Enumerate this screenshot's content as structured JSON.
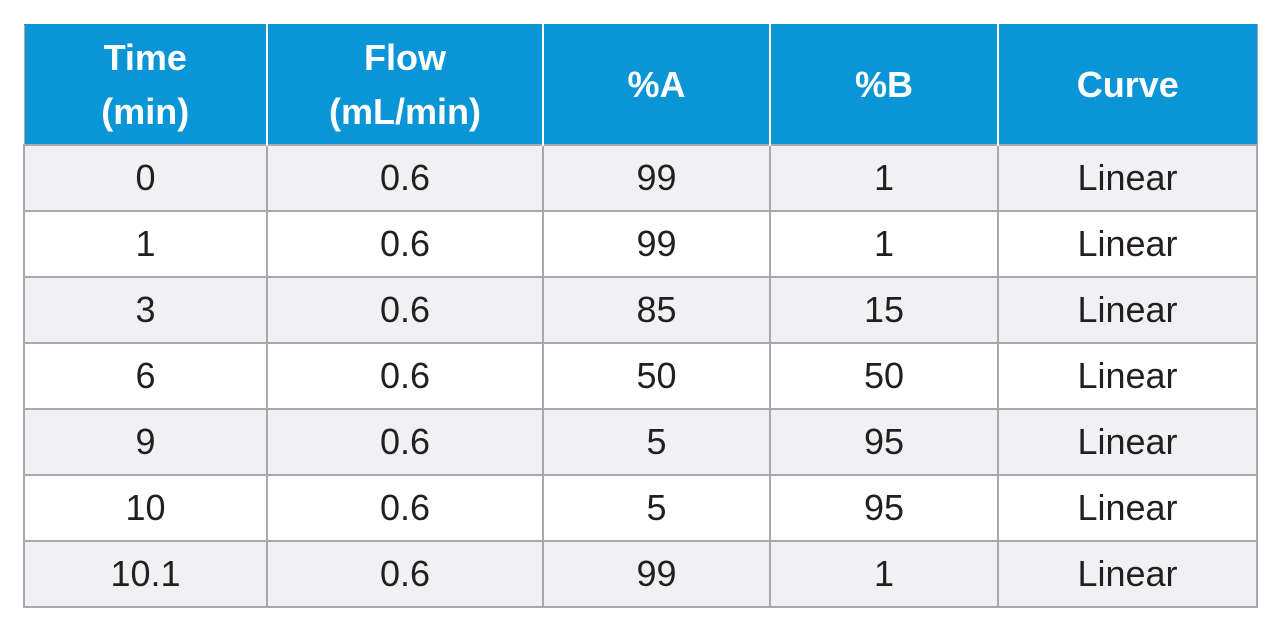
{
  "table": {
    "headers": [
      {
        "line1": "Time",
        "line2": "(min)"
      },
      {
        "line1": "Flow",
        "line2": "(mL/min)"
      },
      {
        "line1": "%A",
        "line2": ""
      },
      {
        "line1": "%B",
        "line2": ""
      },
      {
        "line1": "Curve",
        "line2": ""
      }
    ],
    "rows": [
      [
        "0",
        "0.6",
        "99",
        "1",
        "Linear"
      ],
      [
        "1",
        "0.6",
        "99",
        "1",
        "Linear"
      ],
      [
        "3",
        "0.6",
        "85",
        "15",
        "Linear"
      ],
      [
        "6",
        "0.6",
        "50",
        "50",
        "Linear"
      ],
      [
        "9",
        "0.6",
        "5",
        "95",
        "Linear"
      ],
      [
        "10",
        "0.6",
        "5",
        "95",
        "Linear"
      ],
      [
        "10.1",
        "0.6",
        "99",
        "1",
        "Linear"
      ]
    ]
  },
  "colors": {
    "header_bg": "#0a95d6",
    "header_text": "#ffffff",
    "row_alt_bg": "#f1f1f3",
    "grid": "#a7a9ac"
  }
}
